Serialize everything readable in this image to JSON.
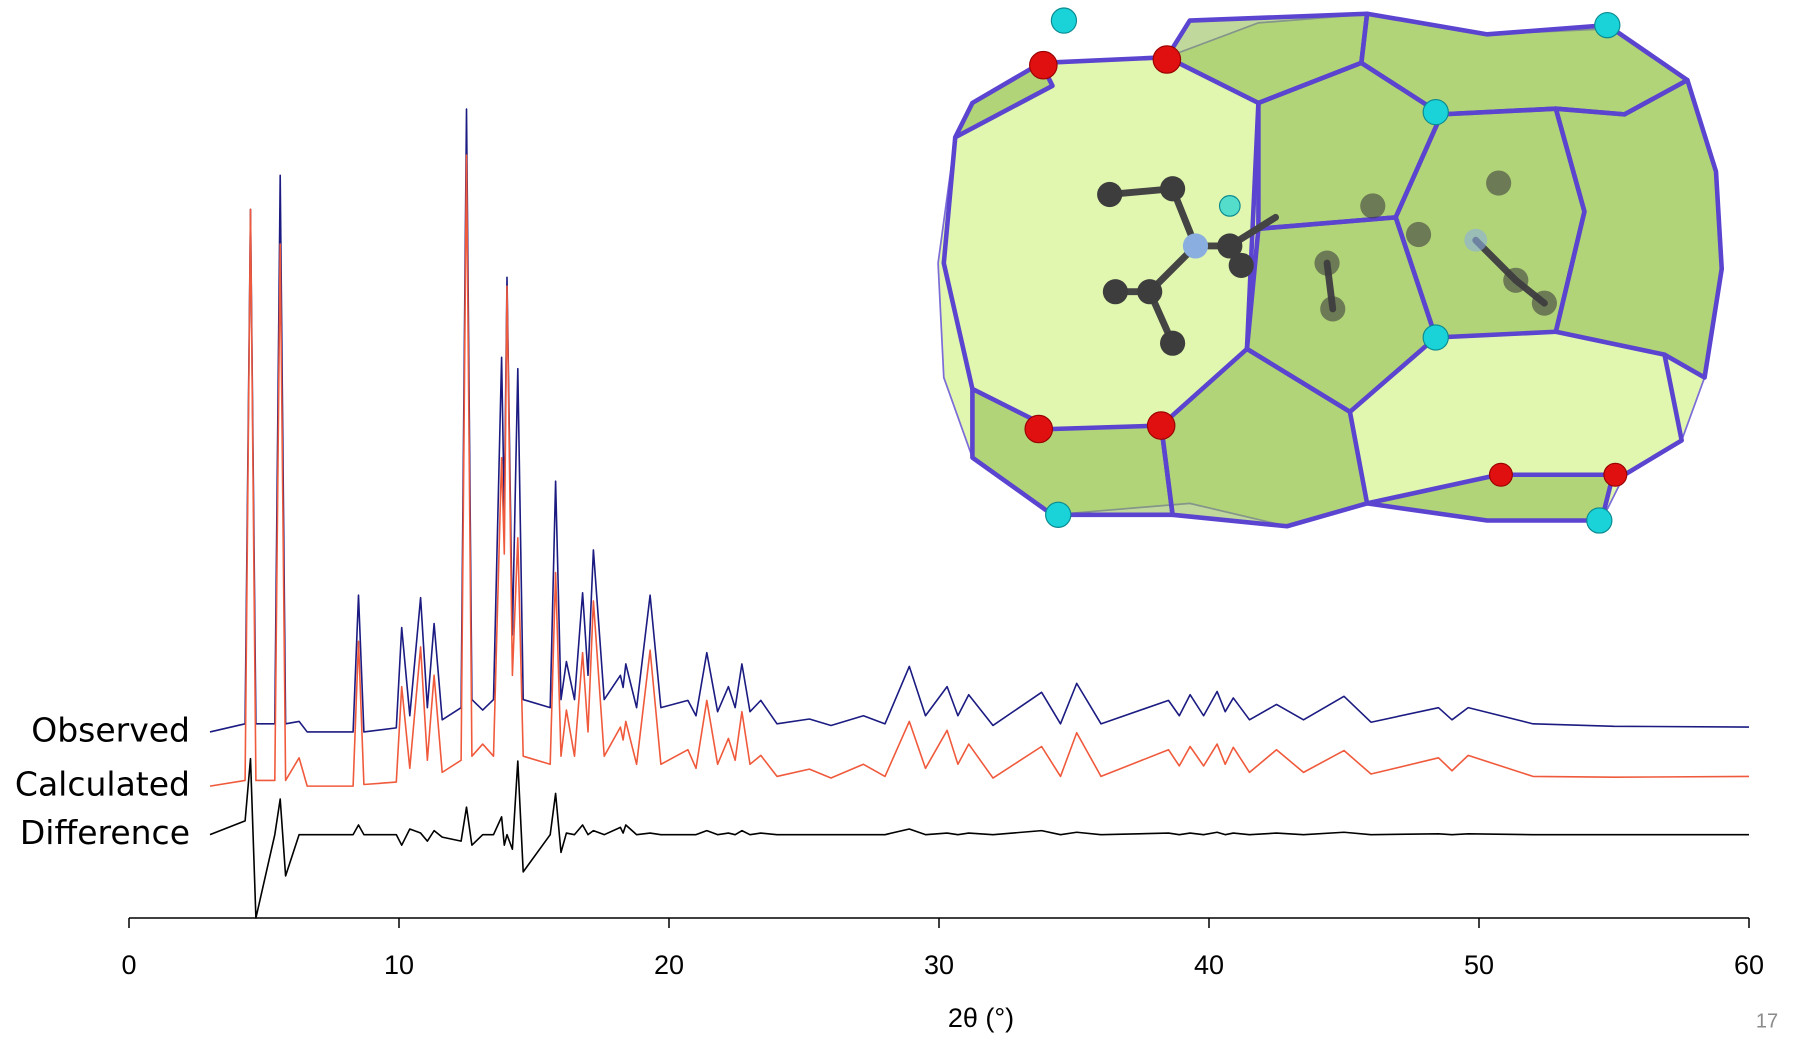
{
  "chart_data": {
    "type": "line",
    "x_label": "2θ (°)",
    "page_number": "17",
    "xlim": [
      0,
      60
    ],
    "xticks": [
      0,
      10,
      20,
      30,
      40,
      50,
      60
    ],
    "ylim": [
      0,
      100
    ],
    "x": [
      3,
      4.3,
      4.5,
      4.7,
      5.4,
      5.6,
      5.8,
      6.3,
      6.6,
      8.3,
      8.5,
      8.7,
      9.9,
      10.1,
      10.4,
      10.8,
      11.05,
      11.3,
      11.6,
      12.3,
      12.5,
      12.7,
      13.1,
      13.5,
      13.8,
      13.9,
      14.0,
      14.2,
      14.4,
      14.6,
      15.6,
      15.8,
      16.0,
      16.2,
      16.5,
      16.8,
      17.0,
      17.2,
      17.6,
      18.2,
      18.3,
      18.4,
      18.8,
      19.3,
      19.7,
      20.7,
      21.0,
      21.4,
      21.8,
      22.2,
      22.45,
      22.7,
      23.0,
      23.4,
      24,
      25.2,
      26,
      27.2,
      28,
      28.9,
      29.5,
      30.3,
      30.7,
      31.1,
      32,
      33.8,
      34.5,
      35.1,
      36,
      38.5,
      38.9,
      39.3,
      39.8,
      40.3,
      40.6,
      40.9,
      41.5,
      42.5,
      43.5,
      45.0,
      46,
      48.5,
      49,
      49.6,
      52,
      55,
      60
    ],
    "series": [
      {
        "name": "Observed",
        "color": "#1b1b82",
        "values": [
          23,
          24,
          87.6,
          24,
          24,
          91.8,
          24,
          24.3,
          23,
          23,
          39.9,
          23,
          23.5,
          35.9,
          25,
          39.6,
          26,
          36.4,
          24.5,
          26,
          100,
          27,
          25.7,
          27,
          69.3,
          50,
          79.2,
          35,
          67.9,
          27,
          26,
          54.0,
          27,
          31.7,
          27,
          40.2,
          30,
          45.5,
          27,
          30.0,
          28.5,
          31.4,
          26,
          39.9,
          26,
          26.9,
          25,
          32.8,
          25.5,
          28.6,
          26,
          31.4,
          25.5,
          26.9,
          24,
          24.6,
          23.8,
          25.0,
          24,
          31.1,
          25,
          28.6,
          25,
          27.6,
          23.8,
          27.9,
          24,
          29.0,
          24,
          26.9,
          25,
          27.6,
          25,
          28.0,
          25.5,
          27.2,
          24.5,
          26.4,
          24.5,
          27.4,
          24.2,
          26.0,
          24.5,
          26.0,
          24,
          23.7,
          23.6
        ]
      },
      {
        "name": "Calculated",
        "color": "#f05a3c",
        "values": [
          16.3,
          17,
          87.6,
          17,
          17,
          83.3,
          17,
          19.8,
          16.3,
          16.3,
          34.2,
          16.5,
          16.8,
          28.6,
          18.5,
          33.5,
          19.5,
          30.0,
          18,
          19.5,
          94.3,
          20,
          21.5,
          20,
          56.9,
          45,
          78.1,
          30,
          47.0,
          20,
          19,
          42.7,
          20,
          25.7,
          20,
          32.8,
          23,
          39.2,
          20,
          23.6,
          22,
          24.3,
          19,
          33.1,
          19,
          20.8,
          18.5,
          26.9,
          19,
          22.2,
          19.5,
          25.5,
          19,
          20.1,
          17.5,
          18.4,
          17.3,
          19.0,
          17.5,
          24.3,
          18.5,
          23.2,
          19,
          21.5,
          17.3,
          21.2,
          17.5,
          22.9,
          17.5,
          20.8,
          18.8,
          21.2,
          18.8,
          21.5,
          19,
          21.1,
          18,
          20.8,
          18,
          20.7,
          17.8,
          19.8,
          18.2,
          20.1,
          17.5,
          17.4,
          17.5
        ]
      },
      {
        "name": "Difference",
        "color": "#000000",
        "values": [
          10.3,
          12,
          19.7,
          0,
          10.3,
          14.7,
          5.2,
          10.3,
          10.3,
          10.3,
          11.5,
          10.3,
          10.3,
          9,
          11,
          10.5,
          9.5,
          10.8,
          10,
          9.5,
          13.7,
          9,
          10.3,
          10.3,
          12.5,
          9,
          10.3,
          8.5,
          19.4,
          5.7,
          10.3,
          15.4,
          8.1,
          10.5,
          10.3,
          11.5,
          10.3,
          10.8,
          10.3,
          11.2,
          10.5,
          11.5,
          10.3,
          10.5,
          10.3,
          10.3,
          10.3,
          10.8,
          10.3,
          10.5,
          10.3,
          10.8,
          10.3,
          10.5,
          10.3,
          10.3,
          10.3,
          10.3,
          10.3,
          11,
          10.3,
          10.5,
          10.3,
          10.5,
          10.3,
          10.8,
          10.3,
          10.6,
          10.3,
          10.5,
          10.3,
          10.5,
          10.3,
          10.6,
          10.3,
          10.5,
          10.3,
          10.5,
          10.3,
          10.6,
          10.3,
          10.4,
          10.3,
          10.4,
          10.3,
          10.3,
          10.3
        ]
      }
    ]
  }
}
